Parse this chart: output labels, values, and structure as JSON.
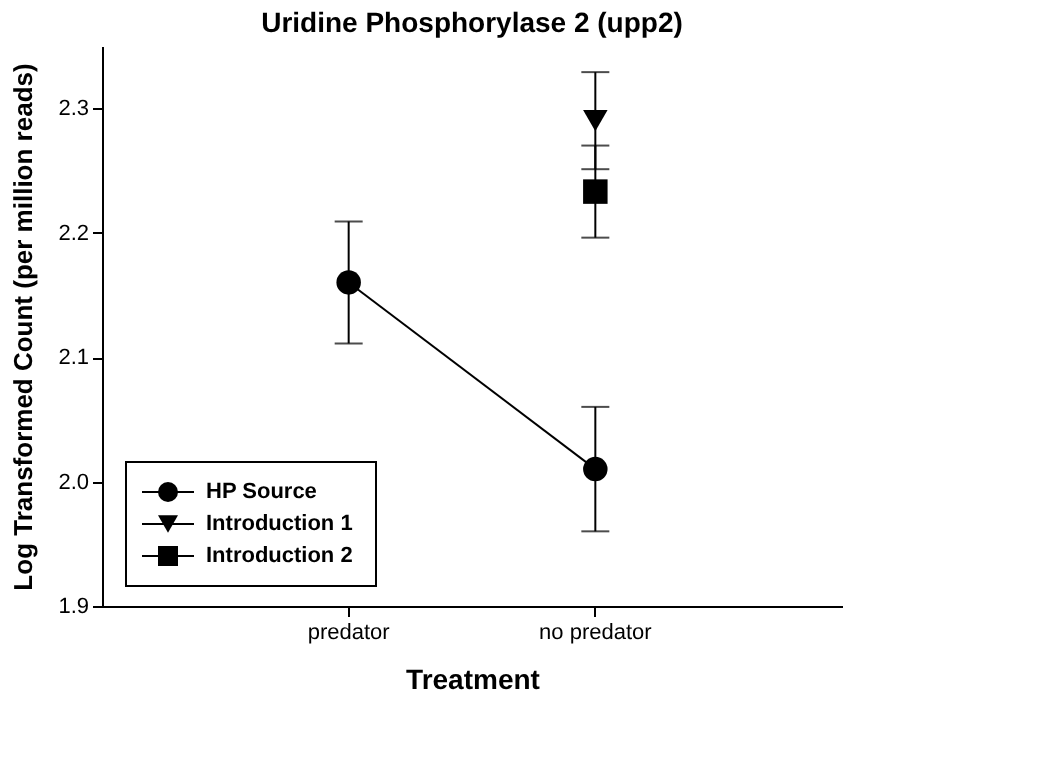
{
  "chart_data": {
    "type": "line",
    "title": "Uridine Phosphorylase 2 (upp2)",
    "xlabel": "Treatment",
    "ylabel": "Log Transformed Count (per million reads)",
    "categories": [
      "predator",
      "no predator"
    ],
    "series": [
      {
        "name": "HP Source",
        "color": "#000000",
        "marker": "circle",
        "values": [
          2.16,
          2.01
        ],
        "errors": [
          0.049,
          0.05
        ]
      },
      {
        "name": "Introduction 1",
        "color": "#000000",
        "marker": "triangle",
        "values": [
          null,
          2.29
        ],
        "errors": [
          null,
          0.039
        ]
      },
      {
        "name": "Introduction 2",
        "color": "#000000",
        "marker": "square",
        "values": [
          null,
          2.233
        ],
        "errors": [
          null,
          0.037
        ]
      }
    ],
    "ylim": [
      1.9,
      2.35
    ],
    "yticks": [
      1.9,
      {
        "value": 2.0,
        "label": "2.0"
      },
      2.1,
      2.2,
      2.3
    ],
    "grid": false,
    "legend": "bottom left"
  }
}
